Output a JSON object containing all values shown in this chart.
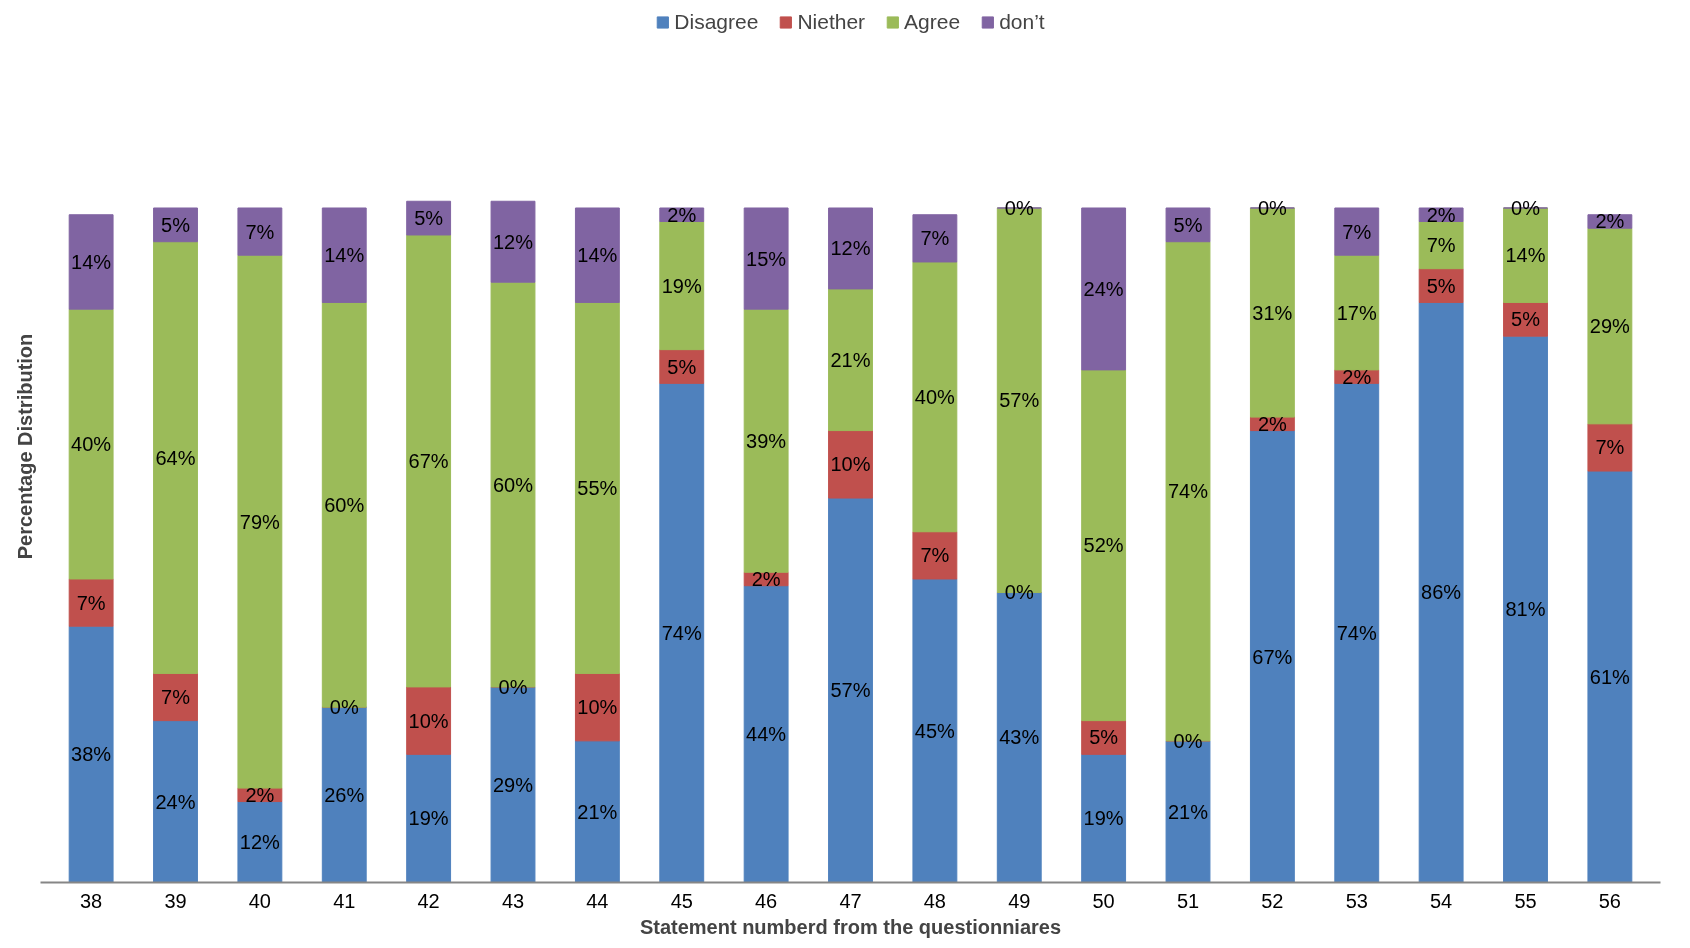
{
  "chart_data": {
    "type": "bar",
    "stacked": true,
    "xlabel": "Statement numberd from the questionniares",
    "ylabel": "Percentage Distribution",
    "legend": "top",
    "grid": false,
    "categories": [
      "38",
      "39",
      "40",
      "41",
      "42",
      "43",
      "44",
      "45",
      "46",
      "47",
      "48",
      "49",
      "50",
      "51",
      "52",
      "53",
      "54",
      "55",
      "56"
    ],
    "series": [
      {
        "name": "Disagree",
        "color": "#4f81bd",
        "values": [
          38,
          24,
          12,
          26,
          19,
          29,
          21,
          74,
          44,
          57,
          45,
          43,
          19,
          21,
          67,
          74,
          86,
          81,
          61
        ],
        "value_labels": [
          "38%",
          "24%",
          "12%",
          "26%",
          "19%",
          "29%",
          "21%",
          "74%",
          "44%",
          "57%",
          "45%",
          "43%",
          "19%",
          "21%",
          "67%",
          "74%",
          "86%",
          "81%",
          "61%"
        ]
      },
      {
        "name": "Niether",
        "color": "#c0504d",
        "values": [
          7,
          7,
          2,
          0,
          10,
          0,
          10,
          5,
          2,
          10,
          7,
          0,
          5,
          0,
          2,
          2,
          5,
          5,
          7
        ],
        "value_labels": [
          "7%",
          "7%",
          "2%",
          "0%",
          "10%",
          "0%",
          "10%",
          "5%",
          "2%",
          "10%",
          "7%",
          "0%",
          "5%",
          "0%",
          "2%",
          "2%",
          "5%",
          "5%",
          "7%"
        ]
      },
      {
        "name": "Agree",
        "color": "#9bbb59",
        "values": [
          40,
          64,
          79,
          60,
          67,
          60,
          55,
          19,
          39,
          21,
          40,
          57,
          52,
          74,
          31,
          17,
          7,
          14,
          29
        ],
        "value_labels": [
          "40%",
          "64%",
          "79%",
          "60%",
          "67%",
          "60%",
          "55%",
          "19%",
          "39%",
          "21%",
          "40%",
          "57%",
          "52%",
          "74%",
          "31%",
          "17%",
          "7%",
          "14%",
          "29%"
        ]
      },
      {
        "name": "don’t",
        "color": "#8064a2",
        "values": [
          14,
          5,
          7,
          14,
          5,
          12,
          14,
          2,
          15,
          12,
          7,
          0,
          24,
          5,
          0,
          7,
          2,
          0,
          2
        ],
        "value_labels": [
          "14%",
          "5%",
          "7%",
          "14%",
          "5%",
          "12%",
          "14%",
          "2%",
          "15%",
          "12%",
          "7%",
          "0%",
          "24%",
          "5%",
          "0%",
          "7%",
          "2%",
          "0%",
          "2%"
        ]
      }
    ]
  }
}
